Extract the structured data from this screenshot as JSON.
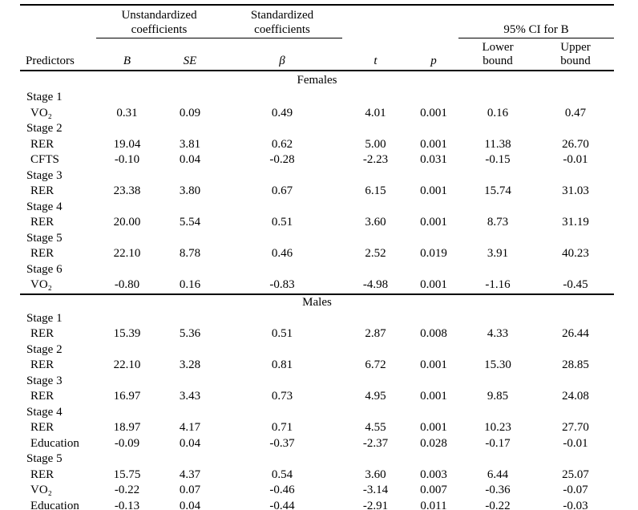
{
  "table": {
    "group_headers": {
      "unstandardized": "Unstandardized\ncoefficients",
      "standardized": "Standardized\ncoefficients",
      "ci": "95% CI for B"
    },
    "columns": [
      "Predictors",
      "B",
      "SE",
      "β",
      "t",
      "p",
      "Lower\nbound",
      "Upper\nbound"
    ],
    "sections": [
      {
        "label": "Females",
        "rows": [
          {
            "type": "stage",
            "label": "Stage 1"
          },
          {
            "type": "predictor",
            "label": "VO₂",
            "values": [
              "0.31",
              "0.09",
              "0.49",
              "4.01",
              "0.001",
              "0.16",
              "0.47"
            ]
          },
          {
            "type": "stage",
            "label": "Stage 2"
          },
          {
            "type": "predictor",
            "label": "RER",
            "values": [
              "19.04",
              "3.81",
              "0.62",
              "5.00",
              "0.001",
              "11.38",
              "26.70"
            ]
          },
          {
            "type": "predictor",
            "label": "CFTS",
            "values": [
              "-0.10",
              "0.04",
              "-0.28",
              "-2.23",
              "0.031",
              "-0.15",
              "-0.01"
            ]
          },
          {
            "type": "stage",
            "label": "Stage 3"
          },
          {
            "type": "predictor",
            "label": "RER",
            "values": [
              "23.38",
              "3.80",
              "0.67",
              "6.15",
              "0.001",
              "15.74",
              "31.03"
            ]
          },
          {
            "type": "stage",
            "label": "Stage 4"
          },
          {
            "type": "predictor",
            "label": "RER",
            "values": [
              "20.00",
              "5.54",
              "0.51",
              "3.60",
              "0.001",
              "8.73",
              "31.19"
            ]
          },
          {
            "type": "stage",
            "label": "Stage 5"
          },
          {
            "type": "predictor",
            "label": "RER",
            "values": [
              "22.10",
              "8.78",
              "0.46",
              "2.52",
              "0.019",
              "3.91",
              "40.23"
            ]
          },
          {
            "type": "stage",
            "label": "Stage 6"
          },
          {
            "type": "predictor",
            "label": "VO₂",
            "values": [
              "-0.80",
              "0.16",
              "-0.83",
              "-4.98",
              "0.001",
              "-1.16",
              "-0.45"
            ]
          }
        ]
      },
      {
        "label": "Males",
        "rows": [
          {
            "type": "stage",
            "label": "Stage 1"
          },
          {
            "type": "predictor",
            "label": "RER",
            "values": [
              "15.39",
              "5.36",
              "0.51",
              "2.87",
              "0.008",
              "4.33",
              "26.44"
            ]
          },
          {
            "type": "stage",
            "label": "Stage 2"
          },
          {
            "type": "predictor",
            "label": "RER",
            "values": [
              "22.10",
              "3.28",
              "0.81",
              "6.72",
              "0.001",
              "15.30",
              "28.85"
            ]
          },
          {
            "type": "stage",
            "label": "Stage 3"
          },
          {
            "type": "predictor",
            "label": "RER",
            "values": [
              "16.97",
              "3.43",
              "0.73",
              "4.95",
              "0.001",
              "9.85",
              "24.08"
            ]
          },
          {
            "type": "stage",
            "label": "Stage 4"
          },
          {
            "type": "predictor",
            "label": "RER",
            "values": [
              "18.97",
              "4.17",
              "0.71",
              "4.55",
              "0.001",
              "10.23",
              "27.70"
            ]
          },
          {
            "type": "predictor",
            "label": "Education",
            "values": [
              "-0.09",
              "0.04",
              "-0.37",
              "-2.37",
              "0.028",
              "-0.17",
              "-0.01"
            ]
          },
          {
            "type": "stage",
            "label": "Stage 5"
          },
          {
            "type": "predictor",
            "label": "RER",
            "values": [
              "15.75",
              "4.37",
              "0.54",
              "3.60",
              "0.003",
              "6.44",
              "25.07"
            ]
          },
          {
            "type": "predictor",
            "label": "VO₂",
            "values": [
              "-0.22",
              "0.07",
              "-0.46",
              "-3.14",
              "0.007",
              "-0.36",
              "-0.07"
            ]
          },
          {
            "type": "predictor",
            "label": "Education",
            "values": [
              "-0.13",
              "0.04",
              "-0.44",
              "-2.91",
              "0.011",
              "-0.22",
              "-0.03"
            ]
          }
        ]
      }
    ]
  }
}
